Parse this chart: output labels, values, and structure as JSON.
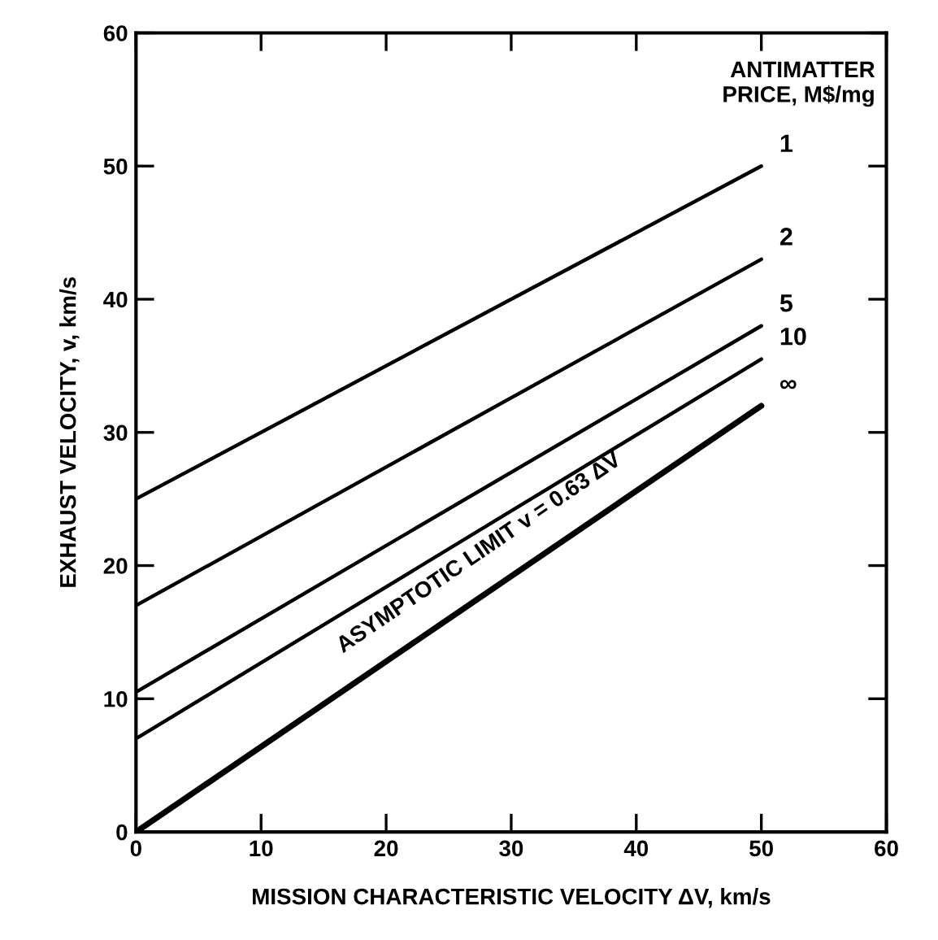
{
  "chart_data": {
    "type": "line",
    "xlabel": "MISSION CHARACTERISTIC VELOCITY ΔV, km/s",
    "ylabel": "EXHAUST VELOCITY, v, km/s",
    "legend_title": "ANTIMATTER PRICE, M$/mg",
    "x": [
      0,
      50
    ],
    "series": [
      {
        "name": "1",
        "color": "#000000",
        "values": [
          25,
          50
        ]
      },
      {
        "name": "2",
        "color": "#000000",
        "values": [
          17,
          43
        ]
      },
      {
        "name": "5",
        "color": "#000000",
        "values": [
          10.5,
          38
        ]
      },
      {
        "name": "10",
        "color": "#000000",
        "values": [
          7,
          35.5
        ]
      },
      {
        "name": "∞",
        "color": "#000000",
        "values": [
          0,
          32
        ]
      }
    ],
    "annotations": [
      "ASYMPTOTIC LIMIT v = 0.63 ΔV"
    ],
    "xlim": [
      0,
      60
    ],
    "ylim": [
      0,
      60
    ],
    "xticks": [
      0,
      10,
      20,
      30,
      40,
      50,
      60
    ],
    "yticks": [
      0,
      10,
      20,
      30,
      40,
      50,
      60
    ],
    "grid": false,
    "legend": false,
    "marker": "none",
    "line_style": "solid"
  }
}
